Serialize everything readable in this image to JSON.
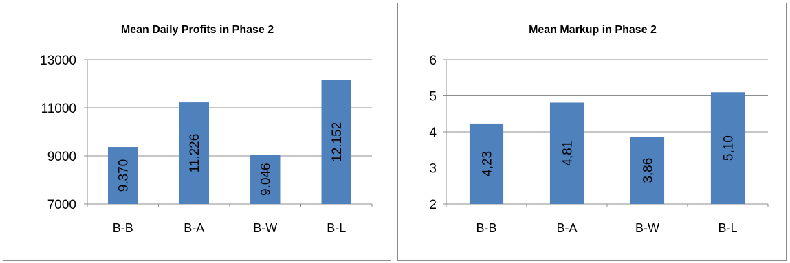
{
  "chart_data": [
    {
      "type": "bar",
      "title": "Mean Daily Profits in Phase 2",
      "categories": [
        "B-B",
        "B-A",
        "B-W",
        "B-L"
      ],
      "values": [
        9370,
        11226,
        9046,
        12152
      ],
      "data_labels": [
        "9.370",
        "11.226",
        "9.046",
        "12.152"
      ],
      "yticks": [
        7000,
        9000,
        11000,
        13000
      ],
      "ylim": [
        7000,
        13000
      ],
      "xlabel": "",
      "ylabel": "",
      "grid": true,
      "legend": "none",
      "bar_color": "#4f81bd"
    },
    {
      "type": "bar",
      "title": "Mean Markup in Phase 2",
      "categories": [
        "B-B",
        "B-A",
        "B-W",
        "B-L"
      ],
      "values": [
        4.23,
        4.81,
        3.86,
        5.1
      ],
      "data_labels": [
        "4,23",
        "4,81",
        "3,86",
        "5,10"
      ],
      "yticks": [
        2,
        3,
        4,
        5,
        6
      ],
      "ylim": [
        2,
        6
      ],
      "xlabel": "",
      "ylabel": "",
      "grid": true,
      "legend": "none",
      "bar_color": "#4f81bd"
    }
  ]
}
